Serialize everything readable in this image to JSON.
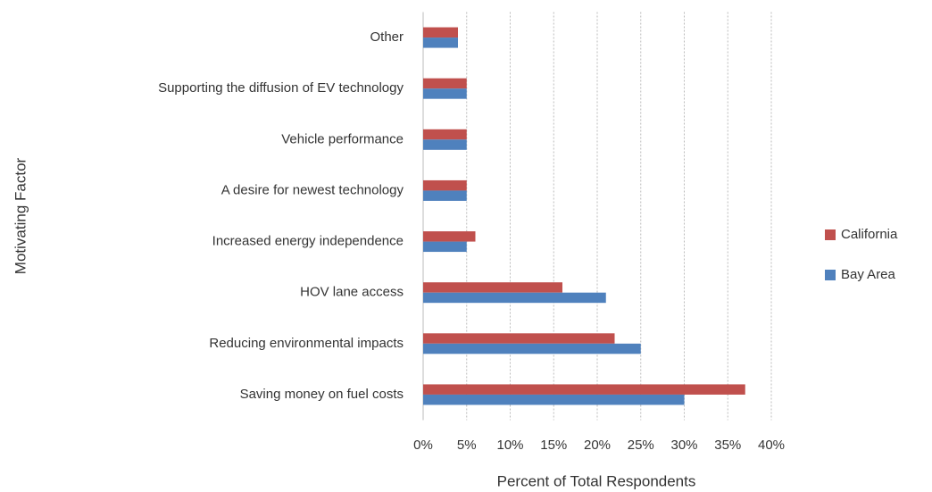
{
  "chart_data": {
    "type": "barh",
    "categories": [
      "Other",
      "Supporting the diffusion of EV technology",
      "Vehicle performance",
      "A desire for newest technology",
      "Increased energy independence",
      "HOV lane access",
      "Reducing environmental impacts",
      "Saving money on fuel costs"
    ],
    "series": [
      {
        "name": "California",
        "color": "#c0504d",
        "values": [
          4,
          5,
          5,
          5,
          6,
          16,
          22,
          37
        ]
      },
      {
        "name": "Bay Area",
        "color": "#4f81bd",
        "values": [
          4,
          5,
          5,
          5,
          5,
          21,
          25,
          30
        ]
      }
    ],
    "xlim": [
      0,
      40
    ],
    "xticks": [
      {
        "value": 0,
        "label": "0%"
      },
      {
        "value": 5,
        "label": "5%"
      },
      {
        "value": 10,
        "label": "10%"
      },
      {
        "value": 15,
        "label": "15%"
      },
      {
        "value": 20,
        "label": "20%"
      },
      {
        "value": 25,
        "label": "25%"
      },
      {
        "value": 30,
        "label": "30%"
      },
      {
        "value": 35,
        "label": "35%"
      },
      {
        "value": 40,
        "label": "40%"
      }
    ],
    "x_label": "Percent of Total Respondents",
    "y_label": "Motivating Factor",
    "grid": true,
    "legend": "right"
  }
}
